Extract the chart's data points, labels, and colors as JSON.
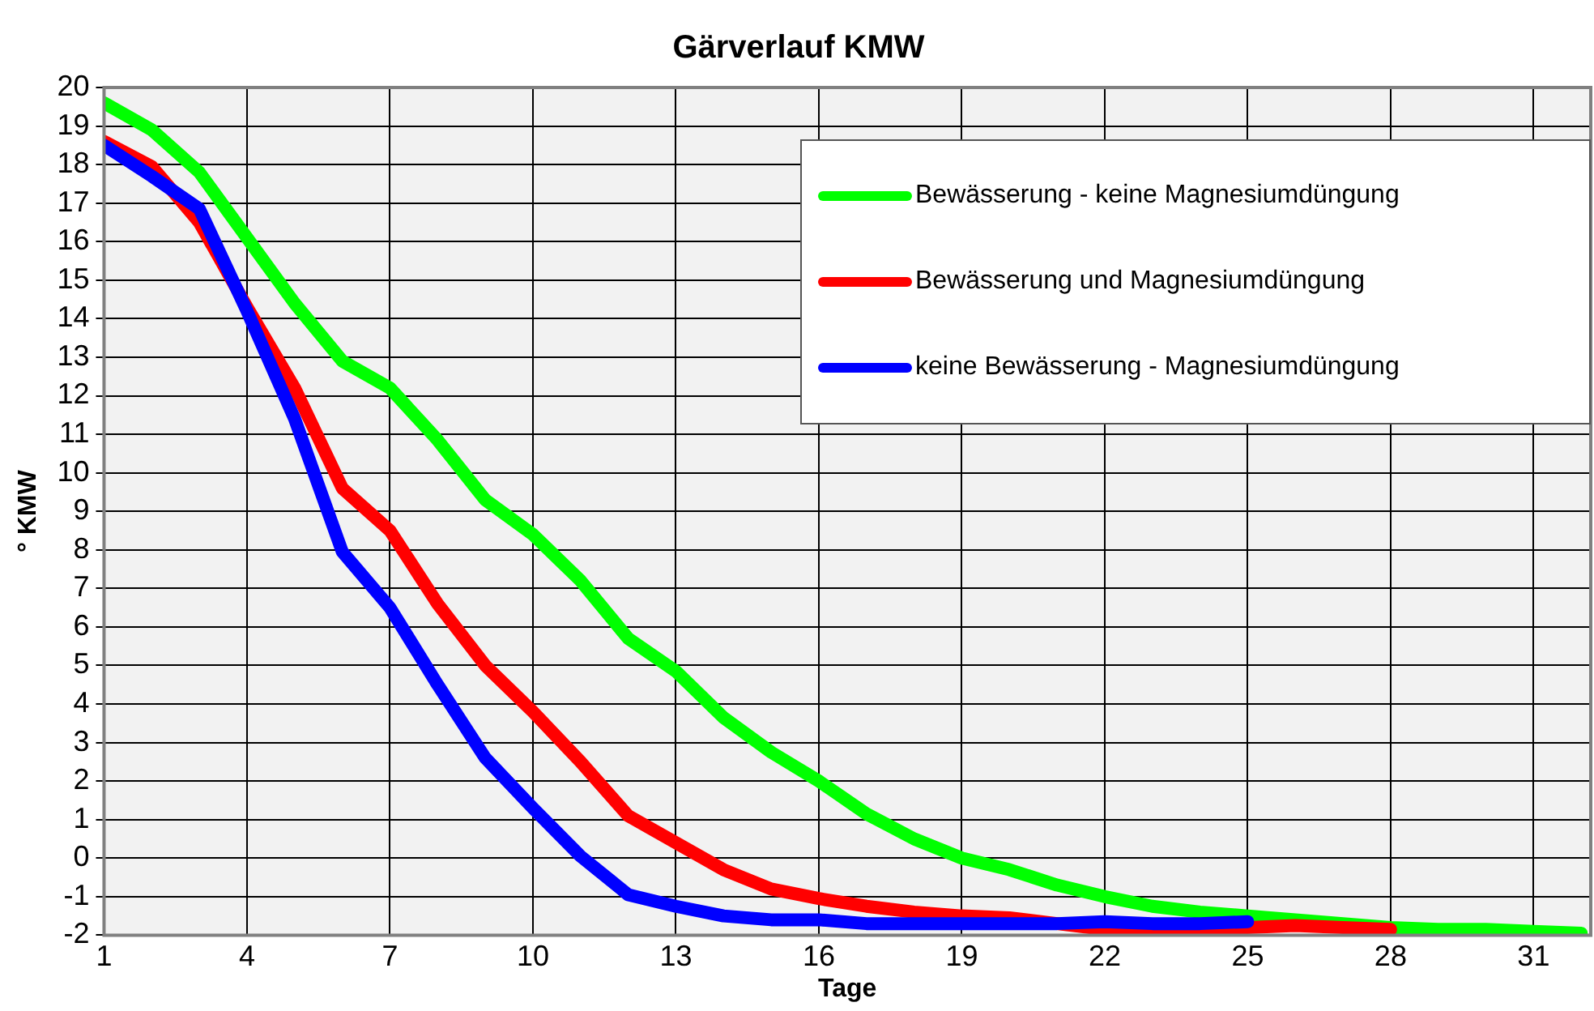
{
  "chart_data": {
    "type": "line",
    "title": "Gärverlauf KMW",
    "xlabel": "Tage",
    "ylabel": "° KMW",
    "xlim": [
      1,
      32.2
    ],
    "xticks": [
      1,
      4,
      7,
      10,
      13,
      16,
      19,
      22,
      25,
      28,
      31
    ],
    "ylim": [
      -2,
      20
    ],
    "yticks": [
      -2,
      -1,
      0,
      1,
      2,
      3,
      4,
      5,
      6,
      7,
      8,
      9,
      10,
      11,
      12,
      13,
      14,
      15,
      16,
      17,
      18,
      19,
      20
    ],
    "grid": true,
    "legend": "top right",
    "marker": "none",
    "line_style": "solid",
    "series": [
      {
        "name": "Bewässerung - keine Magnesiumdüngung",
        "color": "#00ff00",
        "x": [
          1,
          2,
          3,
          4,
          5,
          6,
          7,
          8,
          9,
          10,
          11,
          12,
          13,
          14,
          15,
          16,
          17,
          18,
          19,
          20,
          21,
          22,
          23,
          24,
          25,
          26,
          27,
          28,
          29,
          30,
          31,
          32
        ],
        "values": [
          19.6,
          18.9,
          17.8,
          16.1,
          14.4,
          12.9,
          12.2,
          10.85,
          9.3,
          8.4,
          7.2,
          5.7,
          4.85,
          3.65,
          2.75,
          2.0,
          1.15,
          0.5,
          0,
          -0.3,
          -0.7,
          -1.0,
          -1.25,
          -1.4,
          -1.5,
          -1.6,
          -1.7,
          -1.8,
          -1.85,
          -1.85,
          -1.9,
          -1.95
        ]
      },
      {
        "name": "Bewässerung und Magnesiumdüngung",
        "color": "#ff0000",
        "x": [
          1,
          2,
          3,
          4,
          5,
          6,
          7,
          8,
          9,
          10,
          11,
          12,
          13,
          14,
          15,
          16,
          17,
          18,
          19,
          20,
          21,
          22,
          23,
          24,
          25,
          26,
          27,
          28
        ],
        "values": [
          18.6,
          17.95,
          16.5,
          14.3,
          12.2,
          9.6,
          8.5,
          6.6,
          5.0,
          3.8,
          2.5,
          1.1,
          0.4,
          -0.3,
          -0.8,
          -1.05,
          -1.25,
          -1.4,
          -1.5,
          -1.55,
          -1.7,
          -1.85,
          -1.85,
          -1.85,
          -1.8,
          -1.75,
          -1.8,
          -1.85
        ]
      },
      {
        "name": "keine Bewässerung - Magnesiumdüngung",
        "color": "#0000ff",
        "x": [
          1,
          2,
          3,
          4,
          5,
          6,
          7,
          8,
          9,
          10,
          11,
          12,
          13,
          14,
          15,
          16,
          17,
          18,
          19,
          20,
          21,
          22,
          23,
          24,
          25
        ],
        "values": [
          18.5,
          17.7,
          16.85,
          14.2,
          11.4,
          7.95,
          6.5,
          4.5,
          2.6,
          1.3,
          0.05,
          -0.95,
          -1.25,
          -1.5,
          -1.6,
          -1.6,
          -1.7,
          -1.7,
          -1.7,
          -1.7,
          -1.7,
          -1.65,
          -1.7,
          -1.7,
          -1.65
        ]
      }
    ]
  }
}
